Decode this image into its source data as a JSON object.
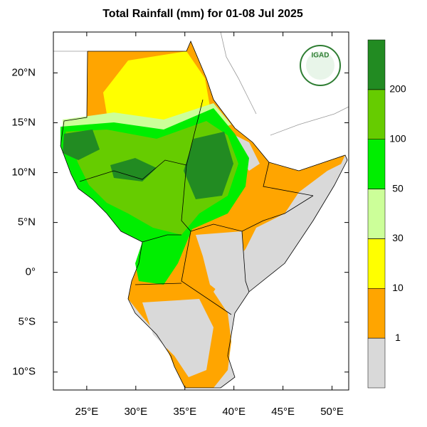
{
  "title": "Total Rainfall (mm) for 01-08 Jul 2025",
  "logo": "IGAD",
  "map": {
    "xlim": [
      21.6,
      51.7
    ],
    "ylim": [
      -11.8,
      24.1
    ],
    "xticks": [
      {
        "value": 25,
        "label": "25°E"
      },
      {
        "value": 30,
        "label": "30°E"
      },
      {
        "value": 35,
        "label": "35°E"
      },
      {
        "value": 40,
        "label": "40°E"
      },
      {
        "value": 45,
        "label": "45°E"
      },
      {
        "value": 50,
        "label": "50°E"
      }
    ],
    "yticks": [
      {
        "value": 20,
        "label": "20°N"
      },
      {
        "value": 15,
        "label": "15°N"
      },
      {
        "value": 10,
        "label": "10°N"
      },
      {
        "value": 5,
        "label": "5°N"
      },
      {
        "value": 0,
        "label": "0°"
      },
      {
        "value": -5,
        "label": "5°S"
      },
      {
        "value": -10,
        "label": "10°S"
      }
    ]
  },
  "colorbar": {
    "levels": [
      1,
      10,
      30,
      50,
      100,
      200
    ],
    "colors": [
      "#d9d9d9",
      "#ffa500",
      "#ffff00",
      "#ccff99",
      "#00ee00",
      "#66cc00",
      "#228b22"
    ]
  }
}
